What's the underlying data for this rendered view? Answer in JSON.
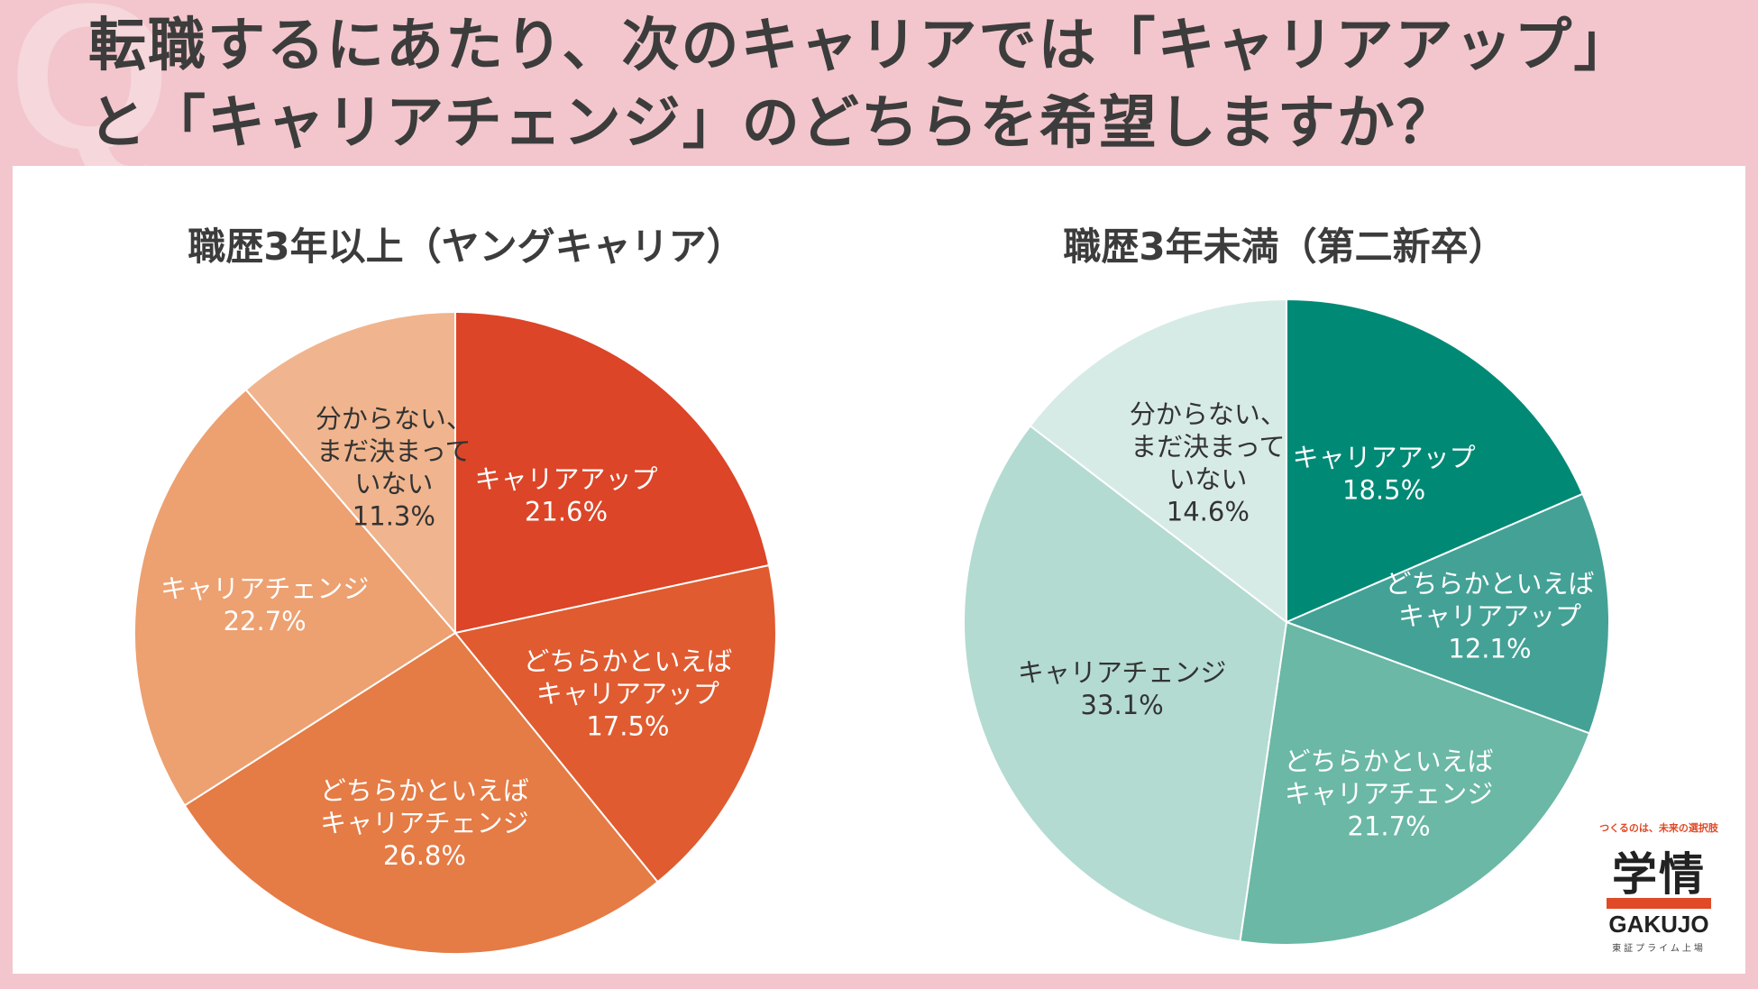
{
  "question_mark": "Q",
  "title": {
    "line1": "転職するにあたり、次のキャリアでは「キャリアアップ」",
    "line2": "と「キャリアチェンジ」のどちらを希望しますか？"
  },
  "logo": {
    "tagline": "つくるのは、未来の選択肢",
    "mark": "学情",
    "name": "GAKUJO",
    "sub": "東証プライム上場"
  },
  "chart_data": [
    {
      "type": "pie",
      "title": "職歴3年以上（ヤングキャリア）",
      "slices": [
        {
          "label": "キャリアアップ",
          "value": 21.6,
          "value_text": "21.6%",
          "color": "#dc4527",
          "text_color": "#ffffff"
        },
        {
          "label": "どちらかといえば\nキャリアアップ",
          "value": 17.5,
          "value_text": "17.5%",
          "color": "#e05b30",
          "text_color": "#ffffff"
        },
        {
          "label": "どちらかといえば\nキャリアチェンジ",
          "value": 26.8,
          "value_text": "26.8%",
          "color": "#e57b45",
          "text_color": "#ffffff"
        },
        {
          "label": "キャリアチェンジ",
          "value": 22.7,
          "value_text": "22.7%",
          "color": "#eda070",
          "text_color": "#ffffff"
        },
        {
          "label": "分からない、\nまだ決まって\nいない",
          "value": 11.3,
          "value_text": "11.3%",
          "color": "#f0b58e",
          "text_color": "#333333"
        }
      ]
    },
    {
      "type": "pie",
      "title": "職歴3年未満（第二新卒）",
      "slices": [
        {
          "label": "キャリアアップ",
          "value": 18.5,
          "value_text": "18.5%",
          "color": "#008a76",
          "text_color": "#ffffff"
        },
        {
          "label": "どちらかといえば\nキャリアアップ",
          "value": 12.1,
          "value_text": "12.1%",
          "color": "#44a196",
          "text_color": "#ffffff"
        },
        {
          "label": "どちらかといえば\nキャリアチェンジ",
          "value": 21.7,
          "value_text": "21.7%",
          "color": "#6ab8a5",
          "text_color": "#ffffff"
        },
        {
          "label": "キャリアチェンジ",
          "value": 33.1,
          "value_text": "33.1%",
          "color": "#b3dbd1",
          "text_color": "#333333"
        },
        {
          "label": "分からない、\nまだ決まって\nいない",
          "value": 14.6,
          "value_text": "14.6%",
          "color": "#d7ebe6",
          "text_color": "#333333"
        }
      ]
    }
  ]
}
